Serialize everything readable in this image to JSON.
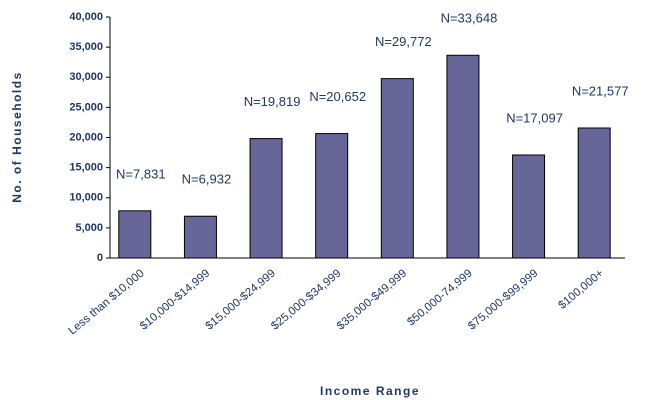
{
  "chart_data": {
    "type": "bar",
    "categories": [
      "Less than $10,000",
      "$10,000-$14,999",
      "$15,000-$24,999",
      "$25,000-$34,999",
      "$35,000-$49,999",
      "$50,000-74,999",
      "$75,000-$99,999",
      "$100,000+"
    ],
    "values": [
      7831,
      6932,
      19819,
      20652,
      29772,
      33648,
      17097,
      21577
    ],
    "value_labels": [
      "N=7,831",
      "N=6,932",
      "N=19,819",
      "N=20,652",
      "N=29,772",
      "N=33,648",
      "N=17,097",
      "N=21,577"
    ],
    "color": "#666699",
    "ylim": [
      0,
      40000
    ],
    "yticks": [
      0,
      {
        "value": 5000,
        "label": "5,000"
      },
      {
        "value": 10000,
        "label": "10,000"
      },
      {
        "value": 15000,
        "label": "15,000"
      },
      {
        "value": 20000,
        "label": "20,000"
      },
      {
        "value": 25000,
        "label": "25,000"
      },
      {
        "value": 30000,
        "label": "30,000"
      },
      {
        "value": 35000,
        "label": "35,000"
      },
      {
        "value": 40000,
        "label": "40,000"
      }
    ],
    "x_label": "Income Range",
    "y_label": "No. of Households"
  }
}
